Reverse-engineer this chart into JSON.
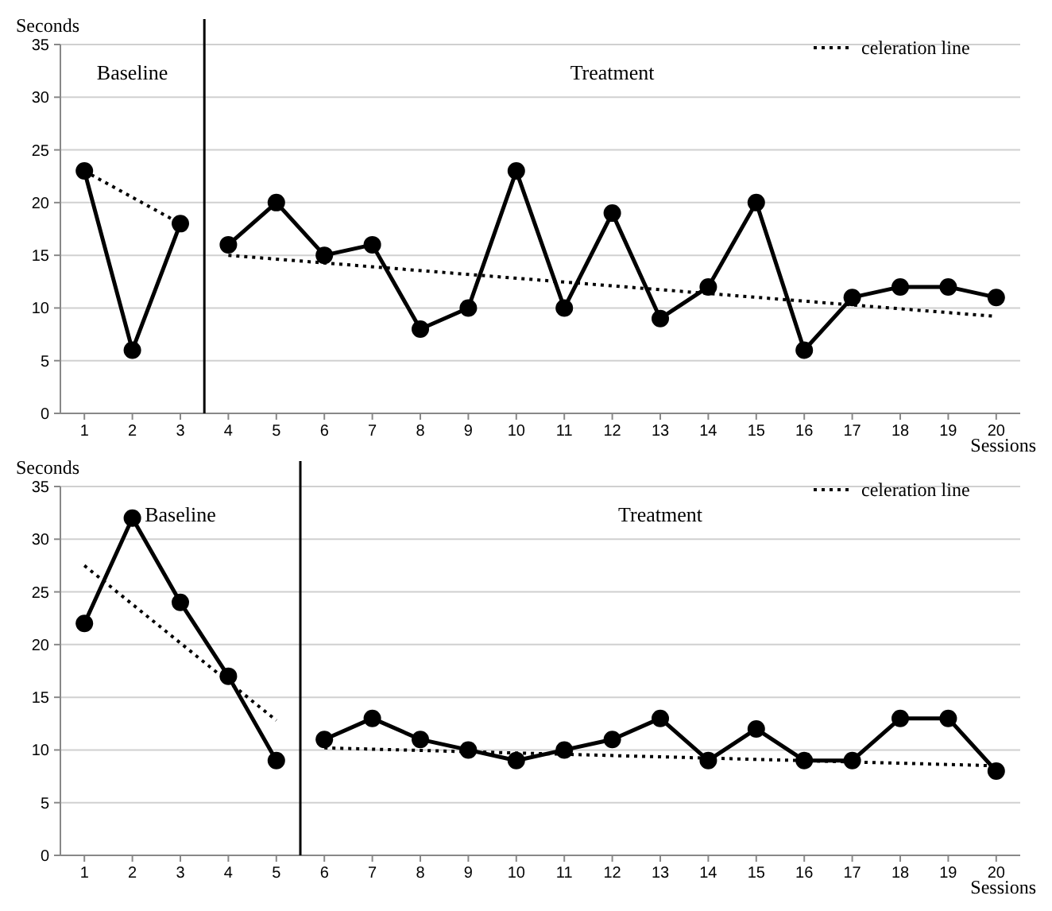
{
  "chart_data": [
    {
      "type": "line",
      "ylabel": "Seconds",
      "xlabel": "Sessions",
      "xlim": [
        0.5,
        20.5
      ],
      "xticks": [
        1,
        2,
        3,
        4,
        5,
        6,
        7,
        8,
        9,
        10,
        11,
        12,
        13,
        14,
        15,
        16,
        17,
        18,
        19,
        20
      ],
      "ylim": [
        0,
        35
      ],
      "yticks": [
        0,
        5,
        10,
        15,
        20,
        25,
        30,
        35
      ],
      "grid": "y",
      "legend": "top right",
      "annotations": [
        "Baseline",
        "Treatment"
      ],
      "ref_lines": [
        {
          "axis": "x",
          "value": 3.5,
          "color": "#000000"
        }
      ],
      "series": [
        {
          "color": "#000000",
          "marker": "circle",
          "line_style": "solid",
          "x": [
            1,
            2,
            3
          ],
          "values": [
            23,
            6,
            18
          ]
        },
        {
          "color": "#000000",
          "marker": "circle",
          "line_style": "solid",
          "x": [
            4,
            5,
            6,
            7,
            8,
            9,
            10,
            11,
            12,
            13,
            14,
            15,
            16,
            17,
            18,
            19,
            20
          ],
          "values": [
            16,
            20,
            15,
            16,
            8,
            10,
            23,
            10,
            19,
            9,
            12,
            20,
            6,
            11,
            12,
            12,
            11
          ]
        },
        {
          "name": "celeration line",
          "color": "#000000",
          "marker": "none",
          "line_style": "dotted",
          "x": [
            1,
            3
          ],
          "values": [
            23,
            18
          ]
        },
        {
          "color": "#000000",
          "marker": "none",
          "line_style": "dotted",
          "x": [
            4,
            20
          ],
          "values": [
            15,
            9.2
          ]
        }
      ]
    },
    {
      "type": "line",
      "ylabel": "Seconds",
      "xlabel": "Sessions",
      "xlim": [
        0.5,
        20.5
      ],
      "xticks": [
        1,
        2,
        3,
        4,
        5,
        6,
        7,
        8,
        9,
        10,
        11,
        12,
        13,
        14,
        15,
        16,
        17,
        18,
        19,
        20
      ],
      "ylim": [
        0,
        35
      ],
      "yticks": [
        0,
        5,
        10,
        15,
        20,
        25,
        30,
        35
      ],
      "grid": "y",
      "legend": "top right",
      "annotations": [
        "Baseline",
        "Treatment"
      ],
      "ref_lines": [
        {
          "axis": "x",
          "value": 5.5,
          "color": "#000000"
        }
      ],
      "series": [
        {
          "color": "#000000",
          "marker": "circle",
          "line_style": "solid",
          "x": [
            1,
            2,
            3,
            4,
            5
          ],
          "values": [
            22,
            32,
            24,
            17,
            9
          ]
        },
        {
          "color": "#000000",
          "marker": "circle",
          "line_style": "solid",
          "x": [
            6,
            7,
            8,
            9,
            10,
            11,
            12,
            13,
            14,
            15,
            16,
            17,
            18,
            19,
            20
          ],
          "values": [
            11,
            13,
            11,
            10,
            9,
            10,
            11,
            13,
            9,
            12,
            9,
            9,
            13,
            13,
            8
          ]
        },
        {
          "name": "celeration line",
          "color": "#000000",
          "marker": "none",
          "line_style": "dotted",
          "x": [
            1,
            5
          ],
          "values": [
            27.5,
            12.8
          ]
        },
        {
          "color": "#000000",
          "marker": "none",
          "line_style": "dotted",
          "x": [
            6,
            20
          ],
          "values": [
            10.2,
            8.5
          ]
        }
      ]
    }
  ]
}
